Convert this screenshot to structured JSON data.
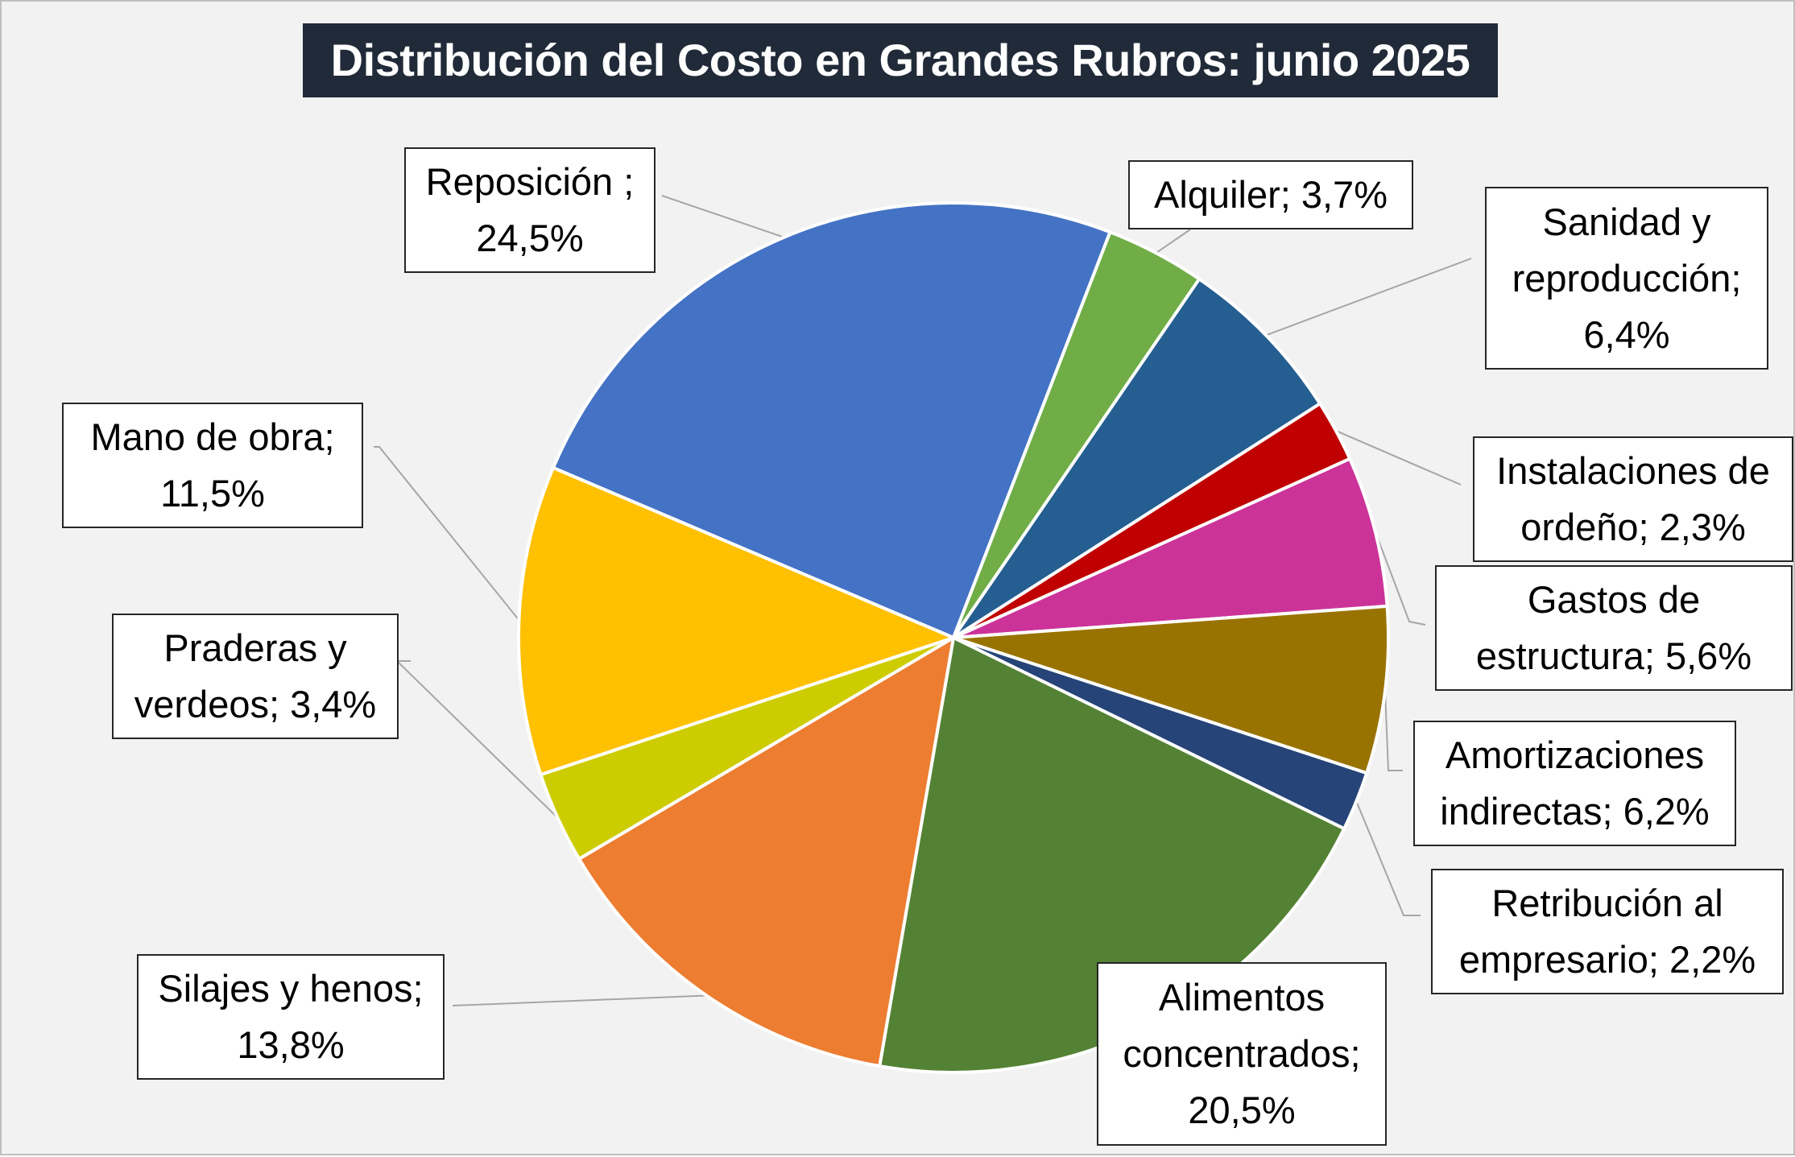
{
  "chart_data": {
    "type": "pie",
    "title": "Distribución del Costo en Grandes Rubros: junio 2025",
    "slices": [
      {
        "label": "Reposición ;",
        "value": 24.5,
        "display": "24,5%",
        "color": "#4472c4"
      },
      {
        "label": "Alquiler;",
        "value": 3.7,
        "display": "3,7%",
        "color": "#70ad47"
      },
      {
        "label": "Sanidad y reproducción;",
        "value": 6.4,
        "display": "6,4%",
        "color": "#255e91"
      },
      {
        "label": "Instalaciones de ordeño;",
        "value": 2.3,
        "display": "2,3%",
        "color": "#c00000"
      },
      {
        "label": "Gastos de estructura;",
        "value": 5.6,
        "display": "5,6%",
        "color": "#cc3399"
      },
      {
        "label": "Amortizaciones indirectas;",
        "value": 6.2,
        "display": "6,2%",
        "color": "#997300"
      },
      {
        "label": "Retribución al empresario;",
        "value": 2.2,
        "display": "2,2%",
        "color": "#264478"
      },
      {
        "label": "Alimentos concentrados;",
        "value": 20.5,
        "display": "20,5%",
        "color": "#548235"
      },
      {
        "label": "Silajes y henos;",
        "value": 13.8,
        "display": "13,8%",
        "color": "#ed7d31"
      },
      {
        "label": "Praderas y verdeos;",
        "value": 3.4,
        "display": "3,4%",
        "color": "#cccc00"
      },
      {
        "label": "Mano de obra;",
        "value": 11.5,
        "display": "11,5%",
        "color": "#ffc000"
      }
    ],
    "legend": "none",
    "data_label_style": "category; percent"
  },
  "labels": {
    "reposicion": {
      "l1": "Reposición ;",
      "l2": "24,5%"
    },
    "alquiler": {
      "l1": "Alquiler; 3,7%"
    },
    "sanidad": {
      "l1": "Sanidad y",
      "l2": "reproducción;",
      "l3": "6,4%"
    },
    "instalaciones": {
      "l1": "Instalaciones de",
      "l2": "ordeño; 2,3%"
    },
    "gastos": {
      "l1": "Gastos de",
      "l2": "estructura; 5,6%"
    },
    "amortizaciones": {
      "l1": "Amortizaciones",
      "l2": "indirectas; 6,2%"
    },
    "retribucion": {
      "l1": "Retribución al",
      "l2": "empresario; 2,2%"
    },
    "alimentos": {
      "l1": "Alimentos",
      "l2": "concentrados;",
      "l3": "20,5%"
    },
    "silajes": {
      "l1": "Silajes y henos;",
      "l2": "13,8%"
    },
    "praderas": {
      "l1": "Praderas y",
      "l2": "verdeos; 3,4%"
    },
    "mano": {
      "l1": "Mano de obra;",
      "l2": "11,5%"
    }
  }
}
